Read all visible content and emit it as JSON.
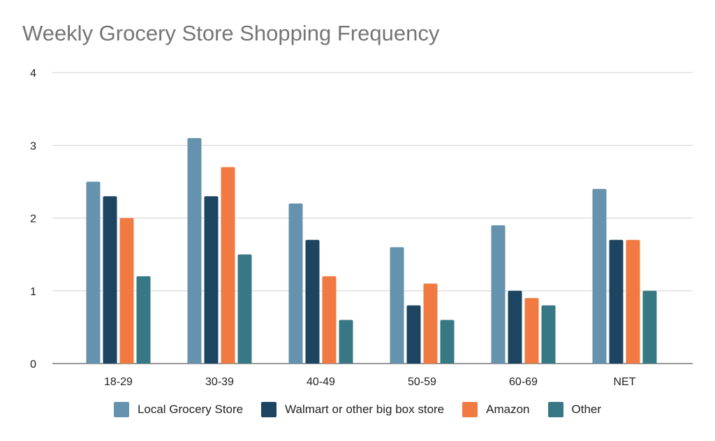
{
  "chart_data": {
    "type": "bar",
    "title": "Weekly Grocery Store Shopping Frequency",
    "xlabel": "",
    "ylabel": "",
    "ylim": [
      0,
      4
    ],
    "yticks": [
      "0",
      "1",
      "2",
      "3",
      "4"
    ],
    "grid": true,
    "legend_position": "bottom",
    "categories": [
      "18-29",
      "30-39",
      "40-49",
      "50-59",
      "60-69",
      "NET"
    ],
    "series": [
      {
        "name": "Local Grocery Store",
        "color": "#6592ad",
        "values": [
          2.5,
          3.1,
          2.2,
          1.6,
          1.9,
          2.4
        ]
      },
      {
        "name": "Walmart or other big box store",
        "color": "#1d4461",
        "values": [
          2.3,
          2.3,
          1.7,
          0.8,
          1.0,
          1.7
        ]
      },
      {
        "name": "Amazon",
        "color": "#f07a42",
        "values": [
          2.0,
          2.7,
          1.2,
          1.1,
          0.9,
          1.7
        ]
      },
      {
        "name": "Other",
        "color": "#387784",
        "values": [
          1.2,
          1.5,
          0.6,
          0.6,
          0.8,
          1.0
        ]
      }
    ]
  }
}
